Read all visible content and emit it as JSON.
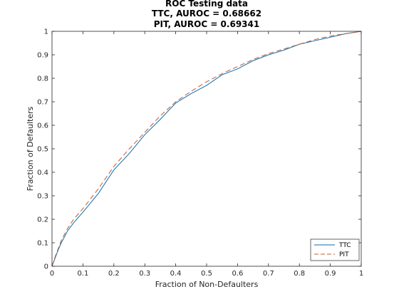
{
  "chart_data": {
    "type": "line",
    "title": "ROC Testing data",
    "subtitle_lines": [
      "TTC, AUROC = 0.68662",
      "PIT, AUROC = 0.69341"
    ],
    "xlabel": "Fraction of Non-Defaulters",
    "ylabel": "Fraction of Defaulters",
    "xlim": [
      0,
      1
    ],
    "ylim": [
      0,
      1
    ],
    "xticks": [
      0,
      0.1,
      0.2,
      0.3,
      0.4,
      0.5,
      0.6,
      0.7,
      0.8,
      0.9,
      1
    ],
    "yticks": [
      0,
      0.1,
      0.2,
      0.3,
      0.4,
      0.5,
      0.6,
      0.7,
      0.8,
      0.9,
      1
    ],
    "xtick_labels": [
      "0",
      "0.1",
      "0.2",
      "0.3",
      "0.4",
      "0.5",
      "0.6",
      "0.7",
      "0.8",
      "0.9",
      "1"
    ],
    "ytick_labels": [
      "0",
      "0.1",
      "0.2",
      "0.3",
      "0.4",
      "0.5",
      "0.6",
      "0.7",
      "0.8",
      "0.9",
      "1"
    ],
    "grid": false,
    "legend_position": "bottom-right",
    "series": [
      {
        "name": "TTC",
        "color": "#0072BD",
        "style": "solid",
        "x": [
          0,
          0.01,
          0.02,
          0.03,
          0.05,
          0.07,
          0.1,
          0.15,
          0.2,
          0.25,
          0.3,
          0.35,
          0.4,
          0.45,
          0.5,
          0.55,
          0.6,
          0.65,
          0.7,
          0.75,
          0.8,
          0.85,
          0.9,
          0.95,
          1
        ],
        "y": [
          0,
          0.035,
          0.07,
          0.1,
          0.15,
          0.185,
          0.23,
          0.31,
          0.41,
          0.48,
          0.56,
          0.625,
          0.695,
          0.735,
          0.77,
          0.815,
          0.84,
          0.875,
          0.9,
          0.92,
          0.945,
          0.96,
          0.975,
          0.99,
          1
        ]
      },
      {
        "name": "PIT",
        "color": "#D95319",
        "style": "dashed",
        "x": [
          0,
          0.01,
          0.02,
          0.03,
          0.05,
          0.07,
          0.1,
          0.15,
          0.2,
          0.25,
          0.3,
          0.35,
          0.4,
          0.45,
          0.5,
          0.55,
          0.6,
          0.65,
          0.7,
          0.75,
          0.8,
          0.85,
          0.9,
          0.95,
          1
        ],
        "y": [
          0,
          0.04,
          0.075,
          0.11,
          0.16,
          0.2,
          0.245,
          0.33,
          0.425,
          0.5,
          0.57,
          0.64,
          0.7,
          0.745,
          0.785,
          0.82,
          0.85,
          0.88,
          0.905,
          0.925,
          0.945,
          0.965,
          0.98,
          0.99,
          1
        ]
      }
    ]
  }
}
